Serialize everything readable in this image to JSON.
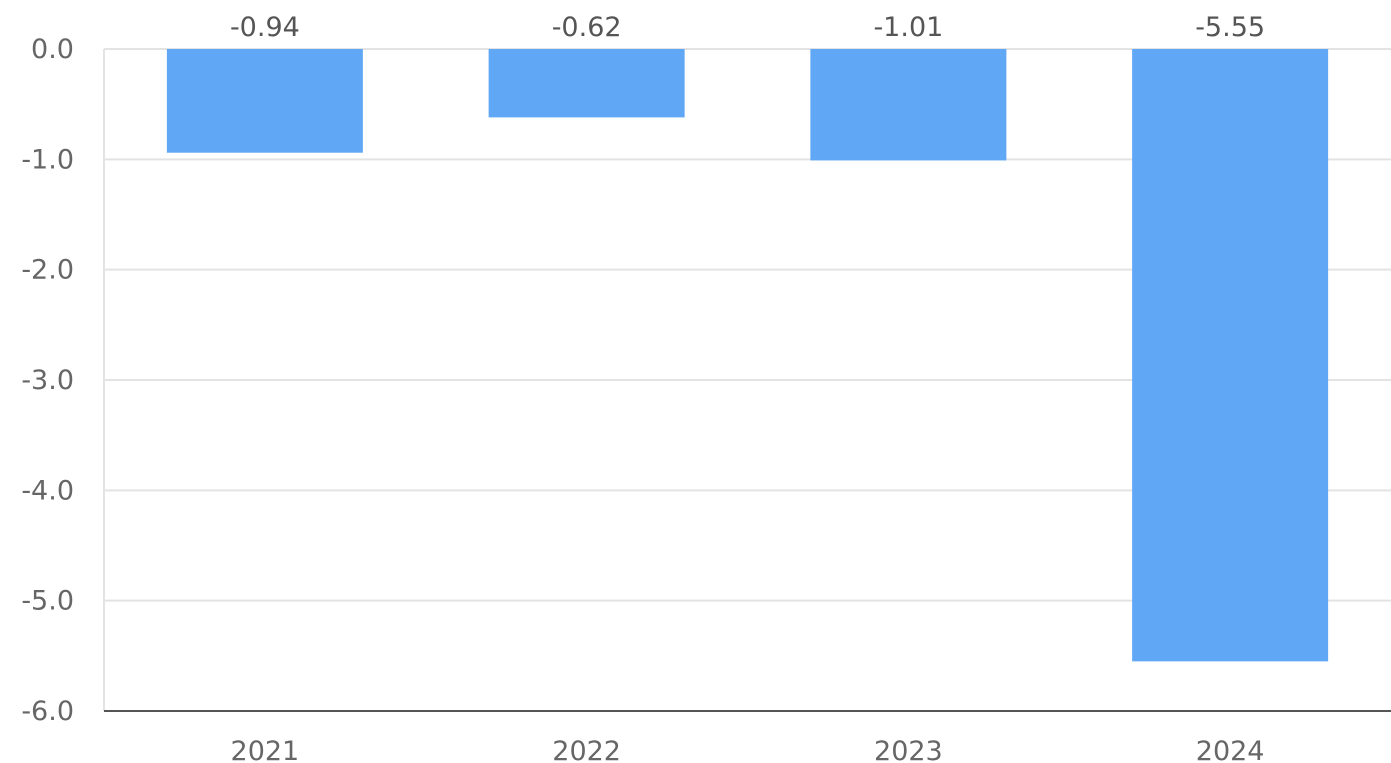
{
  "chart_data": {
    "type": "bar",
    "title": "",
    "xlabel": "",
    "ylabel": "",
    "categories": [
      "2021",
      "2022",
      "2023",
      "2024"
    ],
    "values": [
      -0.94,
      -0.62,
      -1.01,
      -5.55
    ],
    "data_labels": [
      "-0.94",
      "-0.62",
      "-1.01",
      "-5.55"
    ],
    "ylim": [
      -6.0,
      0.0
    ],
    "yticks": [
      0,
      -1,
      -2,
      -3,
      -4,
      -5,
      -6
    ],
    "ytick_labels": [
      "0.0",
      "-1.0",
      "-2.0",
      "-3.0",
      "-4.0",
      "-5.0",
      "-6.0"
    ],
    "grid": true,
    "legend": "none",
    "bar_color": "#60a8f5"
  }
}
